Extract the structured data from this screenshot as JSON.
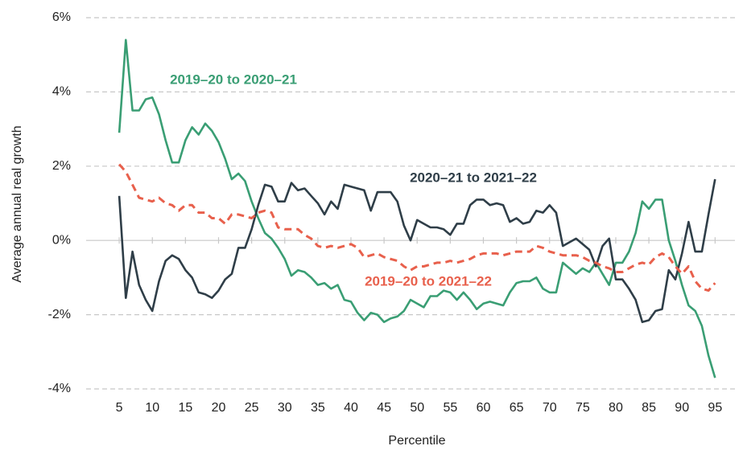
{
  "chart_data": {
    "type": "line",
    "x_label": "Percentile",
    "y_label": "Average annual real growth",
    "x": [
      5,
      6,
      7,
      8,
      9,
      10,
      11,
      12,
      13,
      14,
      15,
      16,
      17,
      18,
      19,
      20,
      21,
      22,
      23,
      24,
      25,
      26,
      27,
      28,
      29,
      30,
      31,
      32,
      33,
      34,
      35,
      36,
      37,
      38,
      39,
      40,
      41,
      42,
      43,
      44,
      45,
      46,
      47,
      48,
      49,
      50,
      51,
      52,
      53,
      54,
      55,
      56,
      57,
      58,
      59,
      60,
      61,
      62,
      63,
      64,
      65,
      66,
      67,
      68,
      69,
      70,
      71,
      72,
      73,
      74,
      75,
      76,
      77,
      78,
      79,
      80,
      81,
      82,
      83,
      84,
      85,
      86,
      87,
      88,
      89,
      90,
      91,
      92,
      93,
      94,
      95
    ],
    "xlim": [
      0,
      98
    ],
    "xticks": [
      5,
      10,
      15,
      20,
      25,
      30,
      35,
      40,
      45,
      50,
      55,
      60,
      65,
      70,
      75,
      80,
      85,
      90,
      95
    ],
    "ylim": [
      -4,
      6
    ],
    "yticks": [
      {
        "value": -4,
        "label": "-4%"
      },
      {
        "value": -2,
        "label": "-2%"
      },
      {
        "value": 0,
        "label": "0%"
      },
      {
        "value": 2,
        "label": "2%"
      },
      {
        "value": 4,
        "label": "4%"
      },
      {
        "value": 6,
        "label": "6%"
      }
    ],
    "grid": true,
    "series": [
      {
        "name": "2019–20 to 2020–21",
        "color": "#3a9e74",
        "dash": false,
        "values": [
          2.9,
          5.4,
          3.5,
          3.5,
          3.8,
          3.85,
          3.4,
          2.7,
          2.1,
          2.1,
          2.7,
          3.05,
          2.85,
          3.15,
          2.95,
          2.65,
          2.2,
          1.65,
          1.8,
          1.6,
          1.05,
          0.6,
          0.2,
          0.05,
          -0.2,
          -0.5,
          -0.95,
          -0.8,
          -0.85,
          -1.0,
          -1.2,
          -1.15,
          -1.3,
          -1.2,
          -1.6,
          -1.65,
          -1.95,
          -2.15,
          -1.95,
          -2.0,
          -2.2,
          -2.1,
          -2.05,
          -1.9,
          -1.6,
          -1.7,
          -1.8,
          -1.5,
          -1.5,
          -1.35,
          -1.4,
          -1.6,
          -1.4,
          -1.6,
          -1.85,
          -1.7,
          -1.65,
          -1.7,
          -1.75,
          -1.4,
          -1.15,
          -1.1,
          -1.1,
          -1.0,
          -1.3,
          -1.4,
          -1.4,
          -0.6,
          -0.75,
          -0.9,
          -0.75,
          -0.85,
          -0.6,
          -0.9,
          -1.2,
          -0.6,
          -0.6,
          -0.3,
          0.2,
          1.05,
          0.85,
          1.1,
          1.1,
          0.0,
          -0.55,
          -1.2,
          -1.75,
          -1.9,
          -2.3,
          -3.1,
          -3.7
        ]
      },
      {
        "name": "2020–21 to 2021–22",
        "color": "#2f3e48",
        "dash": false,
        "values": [
          1.2,
          -1.55,
          -0.3,
          -1.2,
          -1.6,
          -1.9,
          -1.1,
          -0.55,
          -0.4,
          -0.5,
          -0.8,
          -1.0,
          -1.4,
          -1.45,
          -1.55,
          -1.35,
          -1.05,
          -0.9,
          -0.2,
          -0.2,
          0.3,
          0.95,
          1.5,
          1.45,
          1.05,
          1.05,
          1.55,
          1.35,
          1.4,
          1.2,
          1.0,
          0.7,
          1.05,
          0.85,
          1.5,
          1.45,
          1.4,
          1.35,
          0.8,
          1.3,
          1.3,
          1.3,
          1.05,
          0.4,
          0.0,
          0.55,
          0.45,
          0.35,
          0.35,
          0.3,
          0.15,
          0.45,
          0.45,
          0.95,
          1.1,
          1.1,
          0.95,
          1.0,
          0.95,
          0.5,
          0.6,
          0.45,
          0.5,
          0.8,
          0.75,
          0.95,
          0.75,
          -0.15,
          -0.05,
          0.05,
          -0.1,
          -0.25,
          -0.7,
          -0.15,
          0.05,
          -1.05,
          -1.05,
          -1.3,
          -1.6,
          -2.2,
          -2.15,
          -1.9,
          -1.85,
          -0.8,
          -1.05,
          -0.35,
          0.5,
          -0.3,
          -0.3,
          0.7,
          1.65
        ]
      },
      {
        "name": "2019–20 to 2021–22",
        "color": "#e8604c",
        "dash": true,
        "values": [
          2.05,
          1.85,
          1.5,
          1.15,
          1.1,
          1.05,
          1.15,
          1.0,
          0.95,
          0.8,
          0.95,
          0.95,
          0.75,
          0.75,
          0.6,
          0.6,
          0.45,
          0.7,
          0.7,
          0.65,
          0.6,
          0.75,
          0.8,
          0.75,
          0.35,
          0.3,
          0.3,
          0.3,
          0.15,
          0.05,
          -0.15,
          -0.2,
          -0.15,
          -0.2,
          -0.15,
          -0.1,
          -0.2,
          -0.45,
          -0.4,
          -0.35,
          -0.45,
          -0.5,
          -0.55,
          -0.7,
          -0.8,
          -0.7,
          -0.7,
          -0.65,
          -0.6,
          -0.6,
          -0.55,
          -0.6,
          -0.55,
          -0.5,
          -0.4,
          -0.35,
          -0.35,
          -0.35,
          -0.4,
          -0.35,
          -0.3,
          -0.3,
          -0.3,
          -0.15,
          -0.2,
          -0.3,
          -0.35,
          -0.4,
          -0.4,
          -0.4,
          -0.45,
          -0.55,
          -0.6,
          -0.7,
          -0.75,
          -0.85,
          -0.85,
          -0.75,
          -0.65,
          -0.6,
          -0.65,
          -0.45,
          -0.35,
          -0.45,
          -0.7,
          -0.9,
          -0.7,
          -1.1,
          -1.3,
          -1.35,
          -1.15
        ]
      }
    ]
  }
}
